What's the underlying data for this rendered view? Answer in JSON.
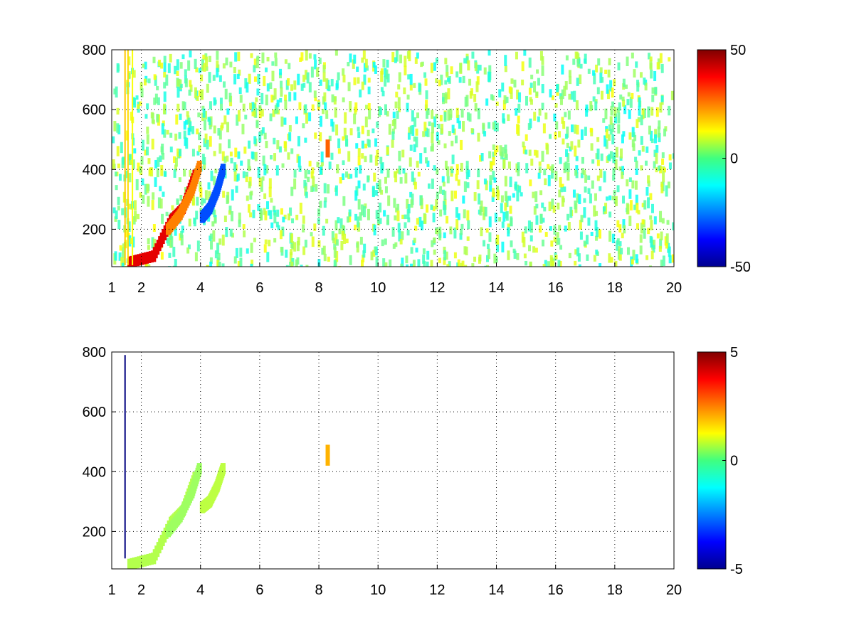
{
  "chart_data": [
    {
      "type": "heatmap",
      "title": "",
      "xlabel": "",
      "ylabel": "",
      "xlim": [
        1,
        20
      ],
      "ylim": [
        75,
        800
      ],
      "x_ticks": [
        1,
        2,
        4,
        6,
        8,
        10,
        12,
        14,
        16,
        18,
        20
      ],
      "y_ticks": [
        200,
        400,
        600,
        800
      ],
      "x_tick_labels": [
        "1",
        "2",
        "4",
        "6",
        "8",
        "10",
        "12",
        "14",
        "16",
        "18",
        "20"
      ],
      "y_tick_labels": [
        "200",
        "400",
        "600",
        "800"
      ],
      "grid": true,
      "colormap": "jet",
      "clim": [
        -50,
        50
      ],
      "colorbar_ticks": [
        50,
        0,
        -50
      ],
      "colorbar_tick_labels": [
        "50",
        "0",
        "-50"
      ],
      "features": [
        {
          "shape": "band",
          "x": [
            1.6,
            2.4,
            3.0,
            3.4,
            3.8
          ],
          "y": [
            90,
            110,
            230,
            270,
            380
          ],
          "value": 40
        },
        {
          "shape": "band",
          "x": [
            2.9,
            3.3,
            3.7,
            3.95
          ],
          "y": [
            200,
            250,
            330,
            410
          ],
          "value": 25
        },
        {
          "shape": "band",
          "x": [
            4.05,
            4.3,
            4.55,
            4.75
          ],
          "y": [
            240,
            270,
            330,
            400
          ],
          "value": -30
        },
        {
          "shape": "column",
          "x": 1.45,
          "y": [
            80,
            800
          ],
          "value": 18
        },
        {
          "shape": "column",
          "x": 1.55,
          "y": [
            80,
            800
          ],
          "value": 16
        },
        {
          "shape": "column",
          "x": 1.7,
          "y": [
            80,
            800
          ],
          "value": 12
        },
        {
          "shape": "blob",
          "x": 8.3,
          "y": [
            440,
            500
          ],
          "value": 28
        }
      ]
    },
    {
      "type": "heatmap",
      "title": "",
      "xlabel": "",
      "ylabel": "",
      "xlim": [
        1,
        20
      ],
      "ylim": [
        75,
        800
      ],
      "x_ticks": [
        1,
        2,
        4,
        6,
        8,
        10,
        12,
        14,
        16,
        18,
        20
      ],
      "y_ticks": [
        200,
        400,
        600,
        800
      ],
      "x_tick_labels": [
        "1",
        "2",
        "4",
        "6",
        "8",
        "10",
        "12",
        "14",
        "16",
        "18",
        "20"
      ],
      "y_tick_labels": [
        "200",
        "400",
        "600",
        "800"
      ],
      "grid": true,
      "colormap": "jet",
      "clim": [
        -5,
        5
      ],
      "colorbar_ticks": [
        5,
        0,
        -5
      ],
      "colorbar_tick_labels": [
        "5",
        "0",
        "-5"
      ],
      "features": [
        {
          "shape": "band",
          "x": [
            1.6,
            2.4,
            3.0,
            3.4,
            3.8
          ],
          "y": [
            90,
            110,
            230,
            270,
            380
          ],
          "value": 0.5
        },
        {
          "shape": "band",
          "x": [
            2.9,
            3.3,
            3.7,
            3.95
          ],
          "y": [
            200,
            250,
            330,
            410
          ],
          "value": 0.3
        },
        {
          "shape": "band",
          "x": [
            4.05,
            4.3,
            4.55,
            4.75
          ],
          "y": [
            280,
            300,
            350,
            410
          ],
          "value": 0.6
        },
        {
          "shape": "column",
          "x": 1.45,
          "y": [
            110,
            790
          ],
          "value": -5
        },
        {
          "shape": "blob",
          "x": 8.3,
          "y": [
            420,
            490
          ],
          "value": 2
        }
      ]
    }
  ]
}
